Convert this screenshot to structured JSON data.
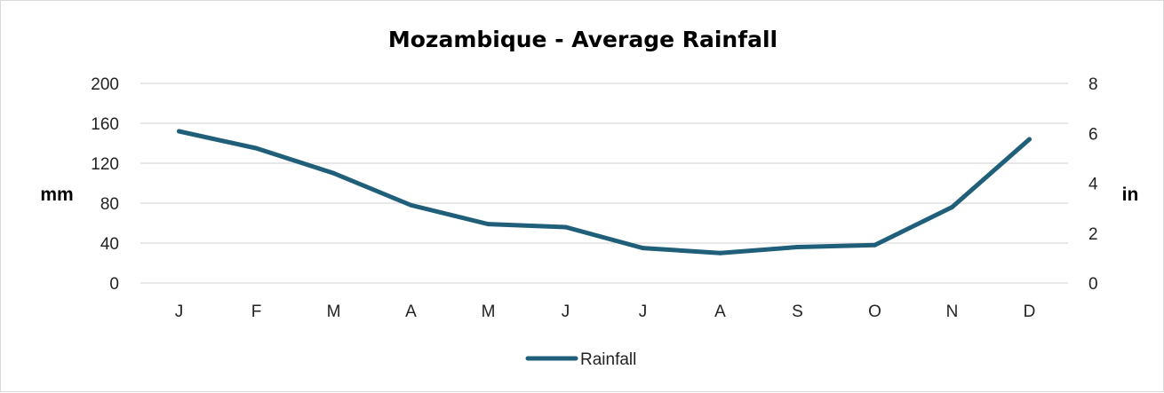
{
  "chart_data": {
    "type": "line",
    "title": "Mozambique - Average Rainfall",
    "categories": [
      "J",
      "F",
      "M",
      "A",
      "M",
      "J",
      "J",
      "A",
      "S",
      "O",
      "N",
      "D"
    ],
    "series": [
      {
        "name": "Rainfall",
        "values": [
          152,
          135,
          110,
          78,
          59,
          56,
          35,
          30,
          36,
          38,
          76,
          144
        ],
        "color": "#1f5f7a"
      }
    ],
    "ylabel": "mm",
    "ylim": [
      0,
      200
    ],
    "yticks": [
      0,
      40,
      80,
      120,
      160,
      200
    ],
    "y2label": "in",
    "y2lim": [
      0,
      8
    ],
    "y2ticks": [
      0,
      2,
      4,
      6,
      8
    ],
    "grid": true,
    "legend": "bottom-center",
    "colors": {
      "gridline": "#d9d9d9",
      "line": "#1f5f7a"
    }
  }
}
